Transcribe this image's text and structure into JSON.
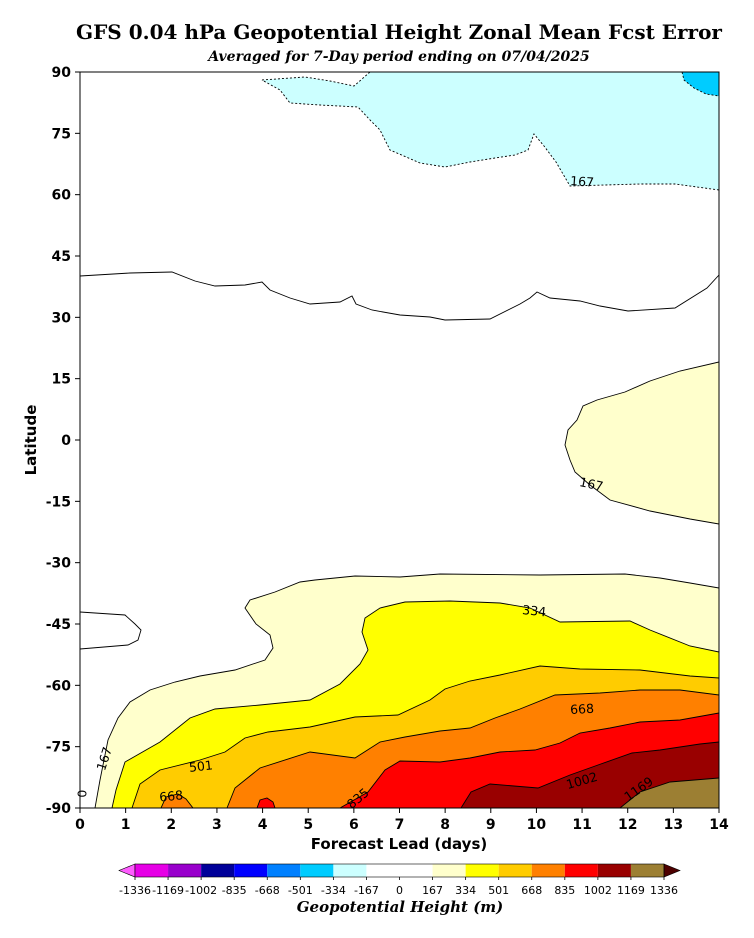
{
  "chart_data": {
    "type": "contour",
    "title": "GFS 0.04 hPa Geopotential Height Zonal Mean Fcst Error",
    "subtitle": "Averaged for 7-Day period ending on 07/04/2025",
    "xlabel": "Forecast Lead (days)",
    "ylabel": "Latitude",
    "xlim": [
      0,
      14
    ],
    "ylim": [
      -90,
      90
    ],
    "x_ticks": [
      "0",
      "1",
      "2",
      "3",
      "4",
      "5",
      "6",
      "7",
      "8",
      "9",
      "10",
      "11",
      "12",
      "13",
      "14"
    ],
    "y_ticks": [
      "90",
      "75",
      "60",
      "45",
      "30",
      "15",
      "0",
      "-15",
      "-30",
      "-45",
      "-60",
      "-75",
      "-90"
    ],
    "contour_levels": [
      -1336,
      -1169,
      -1002,
      -835,
      -668,
      -501,
      -334,
      -167,
      0,
      167,
      334,
      501,
      668,
      835,
      1002,
      1169,
      1336
    ],
    "contour_labels": [
      {
        "text": "167",
        "x": 11.0,
        "y": 63.0,
        "rot": 4
      },
      {
        "text": "167",
        "x": 11.2,
        "y": -11.0,
        "rot": 12
      },
      {
        "text": "334",
        "x": 9.95,
        "y": -42.0,
        "rot": 6
      },
      {
        "text": "668",
        "x": 11.0,
        "y": -66.0,
        "rot": -3
      },
      {
        "text": "501",
        "x": 2.65,
        "y": -80.0,
        "rot": -6
      },
      {
        "text": "668",
        "x": 2.0,
        "y": -87.3,
        "rot": -6
      },
      {
        "text": "835",
        "x": 6.1,
        "y": -87.8,
        "rot": -40
      },
      {
        "text": "1002",
        "x": 11.0,
        "y": -83.5,
        "rot": -16
      },
      {
        "text": "1169",
        "x": 12.25,
        "y": -85.5,
        "rot": -35
      },
      {
        "text": "167",
        "x": 0.55,
        "y": -78.0,
        "rot": -72
      },
      {
        "text": "0",
        "x": 0.07,
        "y": -86.5,
        "rot": -90
      }
    ],
    "colorbar": {
      "label": "Geopotential Height (m)",
      "tick_labels": [
        "-1336",
        "-1169",
        "-1002",
        "-835",
        "-668",
        "-501",
        "-334",
        "-167",
        "0",
        "167",
        "334",
        "501",
        "668",
        "835",
        "1002",
        "1169",
        "1336"
      ],
      "colors": [
        "#ff5cff",
        "#e600e6",
        "#9900cc",
        "#000099",
        "#0000ff",
        "#0080ff",
        "#00ccff",
        "#ccffff",
        "#ffffff",
        "#ffffff",
        "#ffffcc",
        "#ffff00",
        "#ffcc00",
        "#ff8000",
        "#ff0000",
        "#990000",
        "#9c7f33",
        "#4d0000"
      ]
    },
    "grid": false
  }
}
